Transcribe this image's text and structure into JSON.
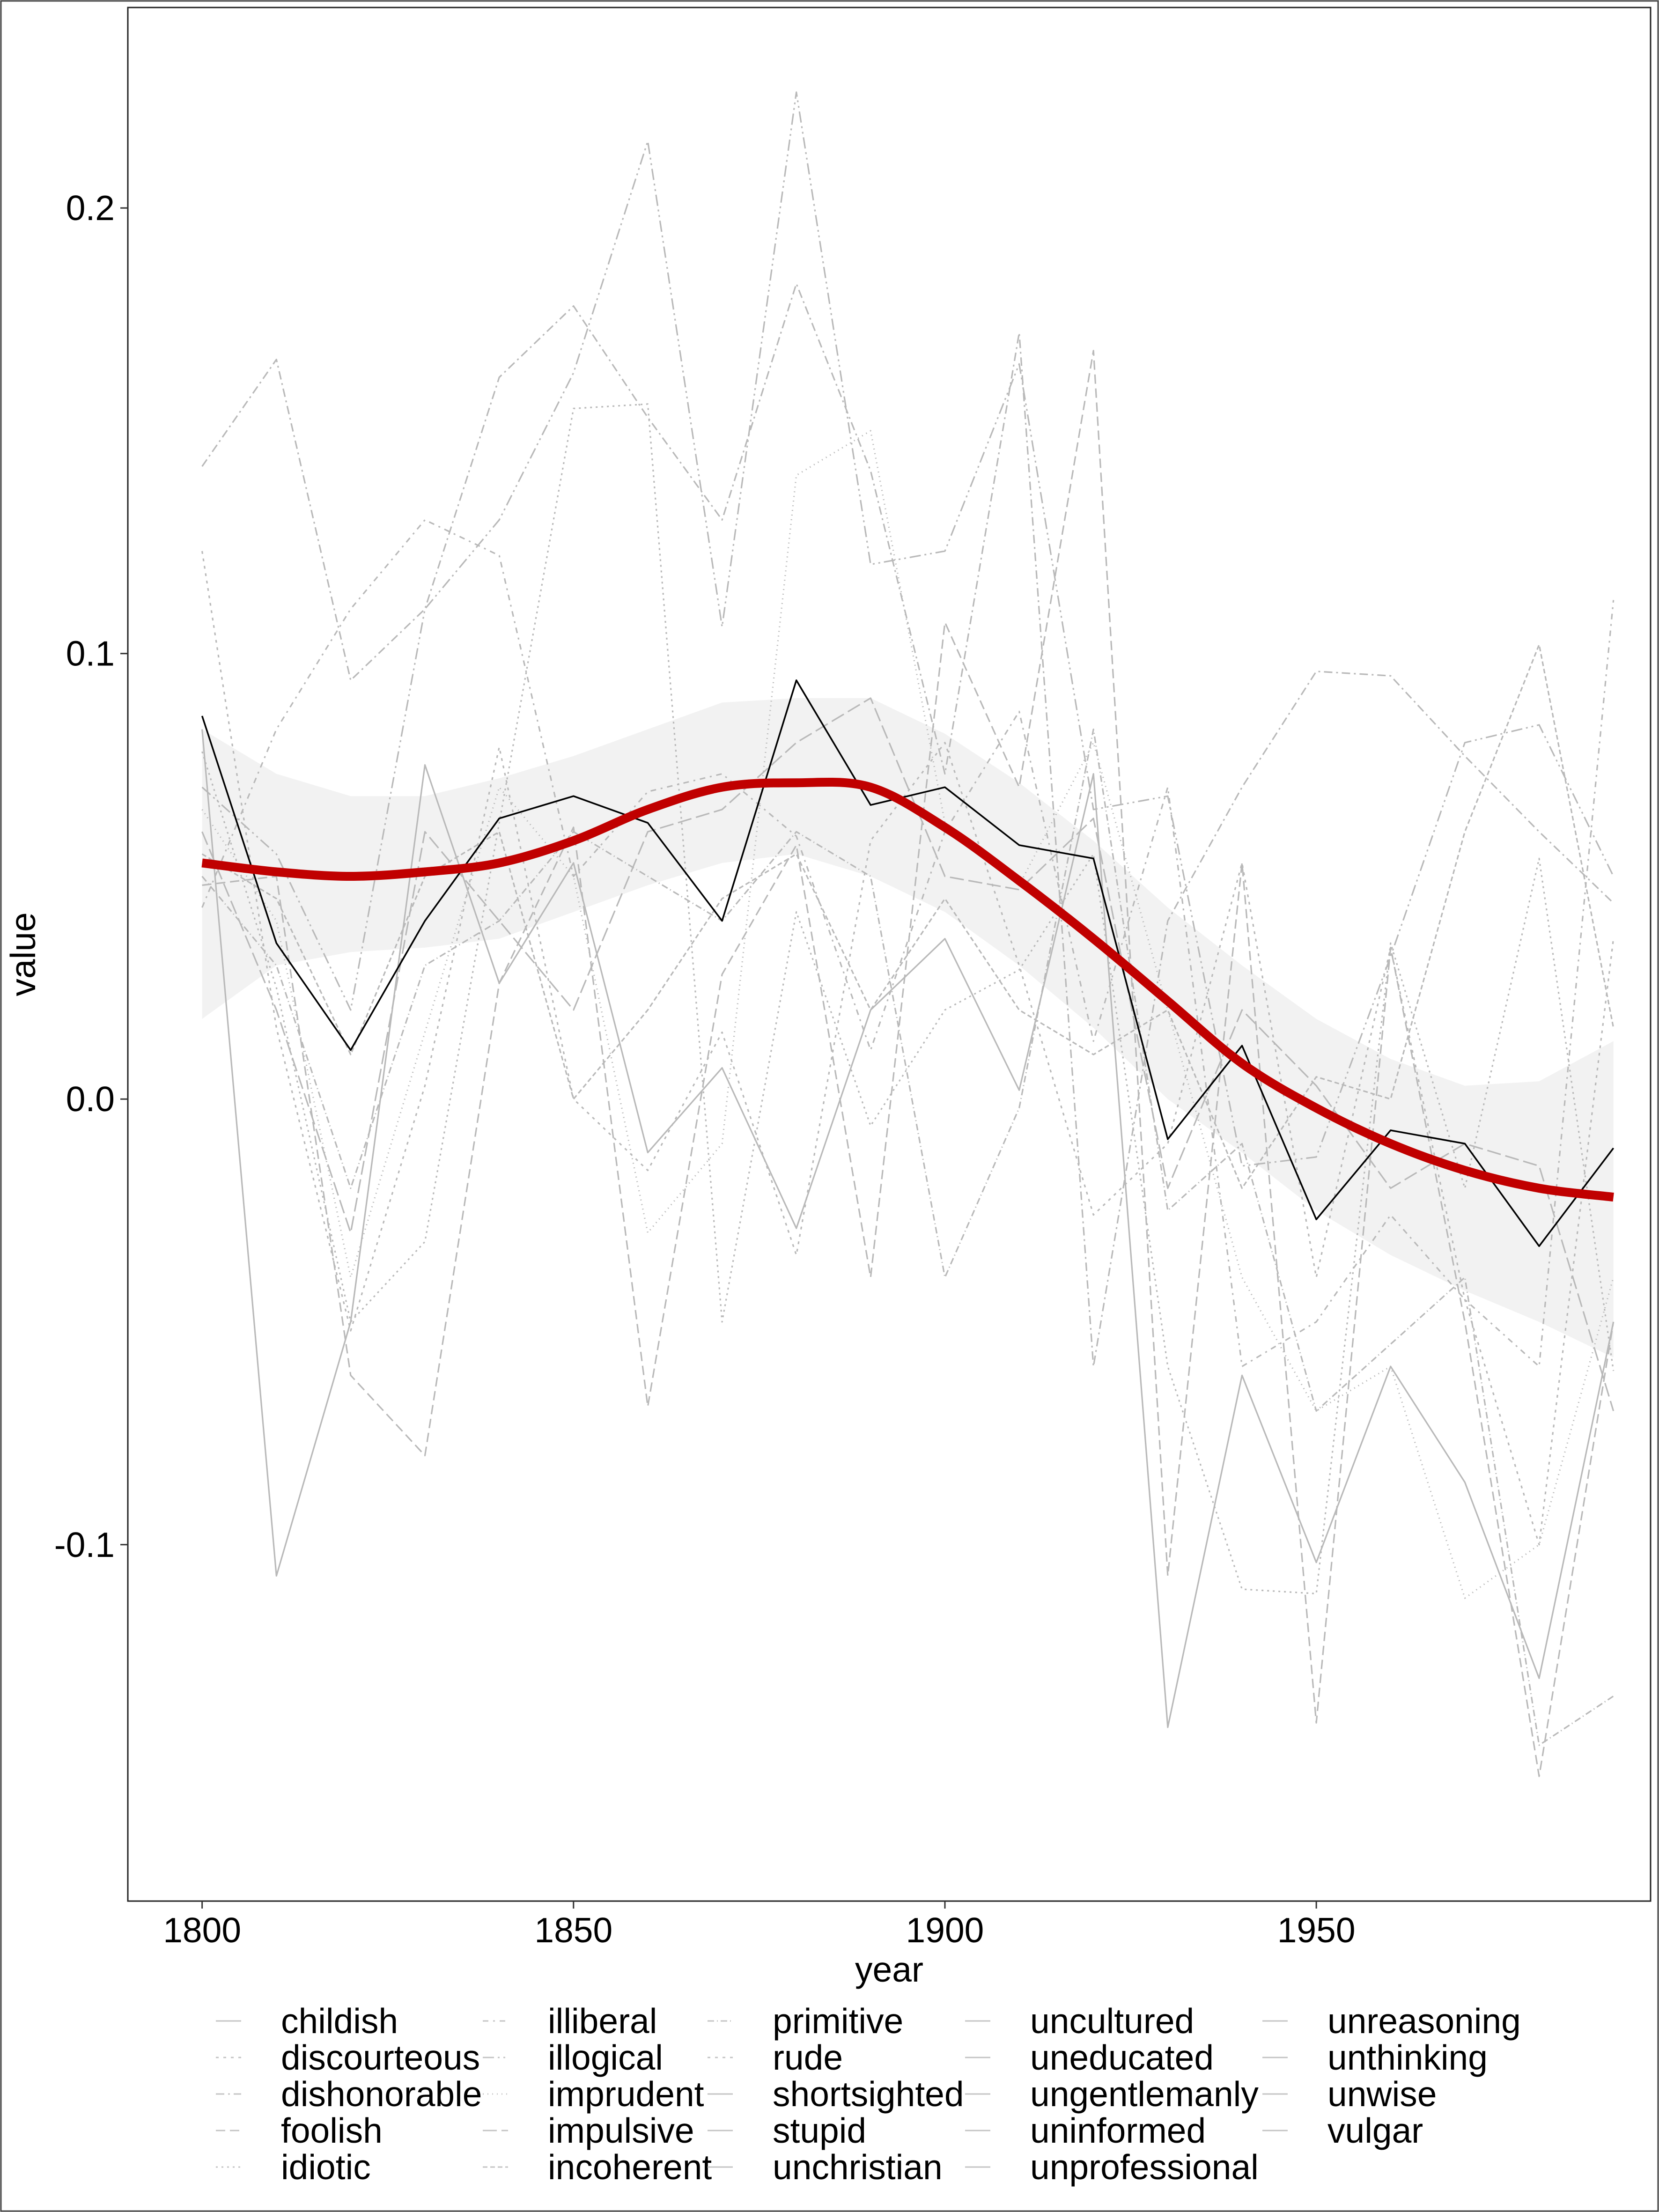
{
  "chart_data": {
    "type": "line",
    "xlabel": "year",
    "ylabel": "value",
    "xlim": [
      1790,
      1995
    ],
    "ylim": [
      -0.18,
      0.245
    ],
    "x_ticks": [
      1800,
      1850,
      1900,
      1950
    ],
    "x_tick_labels": [
      "1800",
      "1850",
      "1900",
      "1950"
    ],
    "y_ticks": [
      -0.1,
      0.0,
      0.1,
      0.2
    ],
    "y_tick_labels": [
      "-0.1",
      "0.0",
      "0.1",
      "0.2"
    ],
    "grid": false,
    "legend_position": "bottom",
    "x": [
      1800,
      1810,
      1820,
      1830,
      1840,
      1850,
      1860,
      1870,
      1880,
      1890,
      1900,
      1910,
      1920,
      1930,
      1940,
      1950,
      1960,
      1970,
      1980,
      1990
    ],
    "highlight_series": {
      "name": "stupid",
      "color": "#000000",
      "values": [
        0.086,
        0.035,
        0.011,
        0.04,
        0.063,
        0.068,
        0.062,
        0.04,
        0.094,
        0.066,
        0.07,
        0.057,
        0.054,
        -0.009,
        0.012,
        -0.027,
        -0.007,
        -0.01,
        -0.033,
        -0.011
      ]
    },
    "smooth": {
      "color": "#c00000",
      "band_color": "#f2f2f2",
      "x": [
        1800,
        1810,
        1820,
        1830,
        1840,
        1850,
        1860,
        1870,
        1880,
        1890,
        1900,
        1910,
        1920,
        1930,
        1940,
        1950,
        1960,
        1970,
        1980,
        1990
      ],
      "values": [
        0.053,
        0.051,
        0.05,
        0.051,
        0.053,
        0.058,
        0.065,
        0.07,
        0.071,
        0.07,
        0.061,
        0.049,
        0.036,
        0.022,
        0.008,
        -0.002,
        -0.01,
        -0.016,
        -0.02,
        -0.022
      ],
      "lower": [
        0.018,
        0.03,
        0.033,
        0.034,
        0.036,
        0.042,
        0.048,
        0.053,
        0.055,
        0.05,
        0.042,
        0.03,
        0.016,
        0.0,
        -0.012,
        -0.025,
        -0.035,
        -0.043,
        -0.05,
        -0.058
      ],
      "upper": [
        0.083,
        0.073,
        0.068,
        0.068,
        0.072,
        0.077,
        0.083,
        0.089,
        0.09,
        0.09,
        0.082,
        0.071,
        0.058,
        0.043,
        0.03,
        0.018,
        0.009,
        0.003,
        0.004,
        0.013
      ]
    },
    "background_series": [
      {
        "values": [
          0.083,
          -0.107,
          -0.05,
          0.075,
          0.026,
          0.053,
          -0.012,
          0.007,
          -0.029,
          0.02,
          0.036,
          0.002,
          0.073,
          -0.141,
          -0.062,
          -0.104,
          -0.06,
          -0.086,
          -0.13,
          -0.05
        ],
        "dash": ""
      },
      {
        "values": [
          0.123,
          0.016,
          -0.052,
          0.003,
          0.079,
          0.0,
          -0.016,
          0.015,
          -0.035,
          0.058,
          0.08,
          0.03,
          -0.026,
          -0.01,
          0.053,
          -0.04,
          0.034,
          -0.045,
          -0.1,
          0.036
        ],
        "dash": "6,10"
      },
      {
        "values": [
          0.142,
          0.166,
          0.094,
          0.11,
          0.162,
          0.178,
          0.153,
          0.13,
          0.183,
          0.141,
          0.073,
          0.172,
          -0.06,
          0.04,
          0.07,
          0.096,
          0.095,
          0.077,
          0.06,
          0.044
        ],
        "dash": "18,8,4,8"
      },
      {
        "values": [
          0.048,
          0.05,
          -0.062,
          -0.08,
          0.026,
          0.061,
          -0.069,
          0.028,
          0.057,
          -0.04,
          0.107,
          0.07,
          0.168,
          -0.107,
          0.053,
          -0.14,
          0.034,
          -0.05,
          -0.152,
          -0.05
        ],
        "dash": "20,10"
      },
      {
        "values": [
          0.078,
          0.025,
          -0.05,
          -0.032,
          0.062,
          0.155,
          0.156,
          -0.05,
          0.042,
          -0.006,
          0.02,
          0.029,
          0.055,
          -0.06,
          -0.11,
          -0.111,
          0.035,
          -0.02,
          0.054,
          -0.061
        ],
        "dash": "4,8"
      },
      {
        "values": [
          0.043,
          0.083,
          0.11,
          0.13,
          0.122,
          0.05,
          0.069,
          0.073,
          0.059,
          0.011,
          0.06,
          0.087,
          0.013,
          0.07,
          -0.06,
          -0.05,
          -0.026,
          -0.045,
          -0.06,
          0.112
        ],
        "dash": "12,10,4,10"
      },
      {
        "values": [
          0.07,
          0.055,
          0.02,
          0.11,
          0.13,
          0.163,
          0.215,
          0.106,
          0.226,
          0.12,
          0.123,
          0.165,
          0.065,
          0.068,
          -0.015,
          -0.013,
          0.032,
          0.08,
          0.084,
          0.05
        ],
        "dash": "24,8,4,8,4,8"
      },
      {
        "values": [
          0.065,
          0.04,
          -0.04,
          0.015,
          0.07,
          0.05,
          -0.03,
          -0.01,
          0.14,
          0.15,
          0.062,
          0.048,
          0.08,
          0.02,
          -0.04,
          -0.07,
          -0.06,
          -0.112,
          -0.1,
          -0.04
        ],
        "dash": "2,8"
      },
      {
        "values": [
          0.06,
          0.02,
          -0.03,
          0.06,
          0.04,
          0.02,
          0.06,
          0.065,
          0.08,
          0.09,
          0.05,
          0.047,
          0.063,
          -0.02,
          0.02,
          0.003,
          -0.02,
          -0.01,
          -0.015,
          -0.07
        ],
        "dash": "30,10"
      },
      {
        "values": [
          0.055,
          0.045,
          0.01,
          0.05,
          0.06,
          0.0,
          0.02,
          0.045,
          0.055,
          0.02,
          0.045,
          0.02,
          0.01,
          0.02,
          -0.02,
          0.005,
          0.0,
          0.06,
          0.102,
          0.016
        ],
        "dash": "10,6"
      },
      {
        "values": [
          0.05,
          0.03,
          -0.02,
          0.03,
          0.04,
          0.06,
          0.05,
          0.04,
          0.06,
          0.05,
          -0.04,
          -0.002,
          0.083,
          -0.025,
          -0.01,
          -0.07,
          -0.055,
          -0.04,
          -0.145,
          -0.134
        ],
        "dash": "14,6,2,6"
      }
    ],
    "legend": [
      [
        "childish",
        "discourteous",
        "dishonorable",
        "foolish",
        "idiotic"
      ],
      [
        "illiberal",
        "illogical",
        "imprudent",
        "impulsive",
        "incoherent"
      ],
      [
        "primitive",
        "rude",
        "shortsighted",
        "stupid",
        "unchristian"
      ],
      [
        "uncultured",
        "uneducated",
        "ungentlemanly",
        "uninformed",
        "unprofessional"
      ],
      [
        "unreasoning",
        "unthinking",
        "unwise",
        "vulgar"
      ]
    ],
    "legend_dashes": [
      [
        "",
        "6,10",
        "18,8,4,8",
        "20,10",
        "4,8"
      ],
      [
        "12,10,4,10",
        "24,8,4,8,4,8",
        "2,8",
        "30,10",
        "10,6"
      ],
      [
        "14,6,2,6",
        "6,10",
        "",
        "",
        ""
      ],
      [
        "",
        "",
        "",
        "",
        ""
      ],
      [
        "",
        "",
        "",
        ""
      ]
    ]
  }
}
